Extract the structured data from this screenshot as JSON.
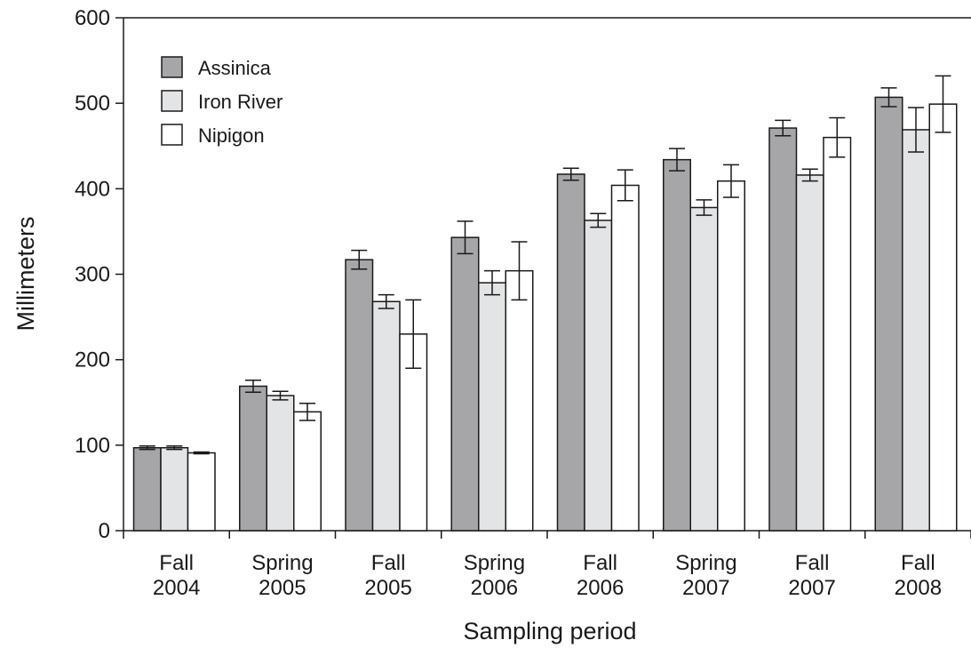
{
  "chart_data": {
    "type": "bar",
    "title": "",
    "xlabel": "Sampling period",
    "ylabel": "Millimeters",
    "ylim": [
      0,
      600
    ],
    "yticks": [
      0,
      100,
      200,
      300,
      400,
      500,
      600
    ],
    "categories": [
      [
        "Fall",
        "2004"
      ],
      [
        "Spring",
        "2005"
      ],
      [
        "Fall",
        "2005"
      ],
      [
        "Spring",
        "2006"
      ],
      [
        "Fall",
        "2006"
      ],
      [
        "Spring",
        "2007"
      ],
      [
        "Fall",
        "2007"
      ],
      [
        "Fall",
        "2008"
      ]
    ],
    "series": [
      {
        "name": "Assinica",
        "color": "#a6a6a9",
        "values": [
          97,
          169,
          317,
          343,
          417,
          434,
          471,
          507
        ],
        "errors": [
          2,
          7,
          11,
          19,
          7,
          13,
          9,
          11
        ]
      },
      {
        "name": "Iron River",
        "color": "#e3e4e6",
        "values": [
          97,
          158,
          268,
          290,
          363,
          378,
          416,
          469
        ],
        "errors": [
          2,
          5,
          8,
          14,
          8,
          9,
          7,
          26
        ]
      },
      {
        "name": "Nipigon",
        "color": "#ffffff",
        "values": [
          91,
          139,
          230,
          304,
          404,
          409,
          460,
          499
        ],
        "errors": [
          1,
          10,
          40,
          34,
          18,
          19,
          23,
          33
        ]
      }
    ],
    "legend_position": "top-left",
    "grid": false
  }
}
